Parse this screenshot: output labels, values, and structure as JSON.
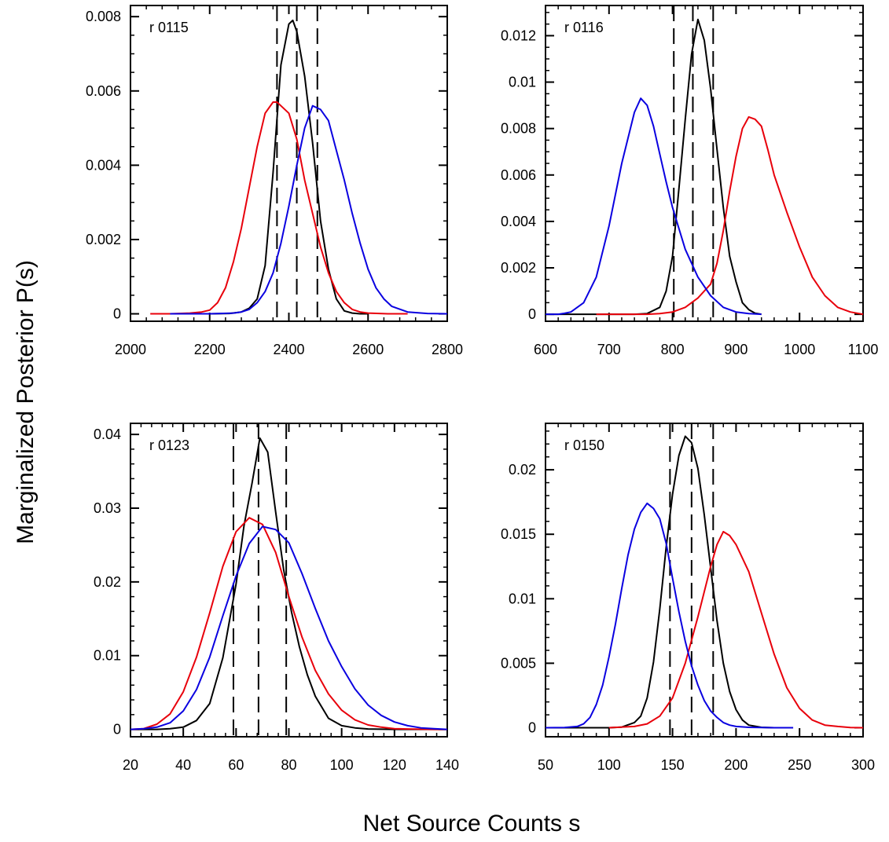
{
  "figure": {
    "ylabel": "Marginalized Posterior P(s)",
    "xlabel": "Net Source Counts s"
  },
  "colors": {
    "black": "#000000",
    "red": "#e8000b",
    "blue": "#0a00e0"
  },
  "chart_data": [
    {
      "type": "line",
      "label": "r 0115",
      "xlim": [
        2000,
        2800
      ],
      "ylim": [
        -0.0002,
        0.0083
      ],
      "xticks": [
        2000,
        2200,
        2400,
        2600,
        2800
      ],
      "xtick_labels": [
        "2000",
        "2200",
        "2400",
        "2600",
        "2800"
      ],
      "x_minor_step": 40,
      "yticks": [
        0,
        0.002,
        0.004,
        0.006,
        0.008
      ],
      "ytick_labels": [
        "0",
        "0.002",
        "0.004",
        "0.006",
        "0.008"
      ],
      "y_minor_step": 0.0005,
      "vlines": [
        2370,
        2420,
        2472
      ],
      "series": [
        {
          "color": "black",
          "x": [
            2150,
            2200,
            2250,
            2280,
            2300,
            2320,
            2340,
            2360,
            2380,
            2400,
            2410,
            2420,
            2440,
            2460,
            2480,
            2500,
            2520,
            2540,
            2560,
            2580,
            2600
          ],
          "y": [
            0,
            0,
            1e-05,
            5e-05,
            0.00015,
            0.0004,
            0.0013,
            0.0038,
            0.0067,
            0.0078,
            0.0079,
            0.0076,
            0.0064,
            0.0046,
            0.0025,
            0.0012,
            0.0004,
            8e-05,
            2e-05,
            0,
            0
          ]
        },
        {
          "color": "red",
          "x": [
            2050,
            2100,
            2150,
            2180,
            2200,
            2220,
            2240,
            2260,
            2280,
            2300,
            2320,
            2340,
            2360,
            2370,
            2380,
            2400,
            2420,
            2440,
            2460,
            2480,
            2500,
            2520,
            2540,
            2560,
            2580,
            2600,
            2650,
            2700
          ],
          "y": [
            0,
            0,
            2e-05,
            5e-05,
            0.0001,
            0.0003,
            0.0007,
            0.0014,
            0.0023,
            0.0034,
            0.0045,
            0.0054,
            0.0057,
            0.0057,
            0.0056,
            0.0054,
            0.0047,
            0.0036,
            0.0027,
            0.0018,
            0.0011,
            0.0006,
            0.0003,
            0.00012,
            5e-05,
            2e-05,
            0,
            0
          ]
        },
        {
          "color": "blue",
          "x": [
            2100,
            2200,
            2260,
            2280,
            2300,
            2320,
            2340,
            2360,
            2380,
            2400,
            2420,
            2440,
            2460,
            2480,
            2500,
            2520,
            2540,
            2560,
            2580,
            2600,
            2620,
            2640,
            2660,
            2700,
            2750,
            2800
          ],
          "y": [
            0,
            0,
            2e-05,
            5e-05,
            0.00012,
            0.0003,
            0.0006,
            0.0011,
            0.0019,
            0.0029,
            0.004,
            0.005,
            0.0056,
            0.0055,
            0.0052,
            0.0044,
            0.0036,
            0.0027,
            0.0019,
            0.0012,
            0.0007,
            0.0004,
            0.0002,
            5e-05,
            1e-05,
            0
          ]
        }
      ]
    },
    {
      "type": "line",
      "label": "r 0116",
      "xlim": [
        600,
        1100
      ],
      "ylim": [
        -0.0003,
        0.0133
      ],
      "xticks": [
        600,
        700,
        800,
        900,
        1000,
        1100
      ],
      "xtick_labels": [
        "600",
        "700",
        "800",
        "900",
        "1000",
        "1100"
      ],
      "x_minor_step": 20,
      "yticks": [
        0,
        0.002,
        0.004,
        0.006,
        0.008,
        0.01,
        0.012
      ],
      "ytick_labels": [
        "0",
        "0.002",
        "0.004",
        "0.006",
        "0.008",
        "0.01",
        "0.012"
      ],
      "y_minor_step": 0.0005,
      "vlines": [
        802,
        832,
        864
      ],
      "series": [
        {
          "color": "black",
          "x": [
            600,
            700,
            740,
            760,
            780,
            790,
            800,
            810,
            820,
            830,
            840,
            850,
            860,
            870,
            880,
            890,
            900,
            910,
            920,
            930,
            940
          ],
          "y": [
            0,
            0,
            0,
            3e-05,
            0.0003,
            0.001,
            0.0025,
            0.0054,
            0.0084,
            0.0112,
            0.0127,
            0.0118,
            0.0097,
            0.0071,
            0.0046,
            0.0025,
            0.0014,
            0.0005,
            0.0002,
            5e-05,
            0
          ]
        },
        {
          "color": "red",
          "x": [
            680,
            760,
            780,
            800,
            820,
            840,
            860,
            870,
            880,
            890,
            900,
            910,
            920,
            930,
            940,
            950,
            960,
            980,
            1000,
            1020,
            1040,
            1060,
            1080,
            1100
          ],
          "y": [
            0,
            0,
            3e-05,
            0.0001,
            0.0003,
            0.0007,
            0.0013,
            0.0022,
            0.0036,
            0.0053,
            0.0068,
            0.008,
            0.0085,
            0.0084,
            0.0081,
            0.0071,
            0.006,
            0.0044,
            0.0029,
            0.0016,
            0.0008,
            0.0003,
            0.0001,
            0
          ]
        },
        {
          "color": "blue",
          "x": [
            600,
            620,
            630,
            640,
            660,
            680,
            700,
            720,
            740,
            750,
            760,
            770,
            780,
            790,
            800,
            820,
            840,
            860,
            880,
            900,
            920,
            940
          ],
          "y": [
            0,
            0,
            4e-05,
            0.0001,
            0.0005,
            0.0016,
            0.0038,
            0.0065,
            0.0087,
            0.0093,
            0.009,
            0.0081,
            0.0069,
            0.0057,
            0.0046,
            0.0028,
            0.0016,
            0.0008,
            0.0003,
            0.0001,
            3e-05,
            0
          ]
        }
      ]
    },
    {
      "type": "line",
      "label": "r 0123",
      "xlim": [
        20,
        140
      ],
      "ylim": [
        -0.001,
        0.0415
      ],
      "xticks": [
        20,
        40,
        60,
        80,
        100,
        120,
        140
      ],
      "xtick_labels": [
        "20",
        "40",
        "60",
        "80",
        "100",
        "120",
        "140"
      ],
      "x_minor_step": 4,
      "yticks": [
        0,
        0.01,
        0.02,
        0.03,
        0.04
      ],
      "ytick_labels": [
        "0",
        "0.01",
        "0.02",
        "0.03",
        "0.04"
      ],
      "y_minor_step": 0.002,
      "vlines": [
        59,
        68.5,
        79
      ],
      "series": [
        {
          "color": "black",
          "x": [
            20,
            30,
            35,
            40,
            45,
            50,
            55,
            60,
            63,
            66,
            69,
            72,
            75,
            78,
            81,
            84,
            87,
            90,
            95,
            100,
            105,
            110,
            120,
            130,
            140
          ],
          "y": [
            0,
            0,
            0.0001,
            0.0003,
            0.0012,
            0.0035,
            0.0097,
            0.0197,
            0.0276,
            0.0333,
            0.0395,
            0.0376,
            0.0295,
            0.0217,
            0.0159,
            0.0112,
            0.0074,
            0.0045,
            0.0015,
            0.0005,
            0.0002,
            5e-05,
            0,
            0,
            0
          ]
        },
        {
          "color": "red",
          "x": [
            20,
            25,
            30,
            35,
            40,
            45,
            50,
            55,
            60,
            65,
            70,
            75,
            80,
            85,
            90,
            95,
            100,
            105,
            110,
            115,
            120,
            125,
            130,
            135,
            140
          ],
          "y": [
            0,
            0.0001,
            0.0007,
            0.0021,
            0.0051,
            0.0098,
            0.0158,
            0.0221,
            0.0268,
            0.0287,
            0.0278,
            0.024,
            0.018,
            0.0125,
            0.008,
            0.0048,
            0.0026,
            0.0013,
            0.0006,
            0.0003,
            0.0001,
            5e-05,
            2e-05,
            0,
            0
          ]
        },
        {
          "color": "blue",
          "x": [
            20,
            25,
            30,
            35,
            40,
            45,
            50,
            55,
            60,
            65,
            70,
            75,
            80,
            85,
            90,
            95,
            100,
            105,
            110,
            115,
            120,
            125,
            130,
            135,
            140
          ],
          "y": [
            0,
            0.0001,
            0.0003,
            0.0009,
            0.0025,
            0.0054,
            0.0098,
            0.0154,
            0.0208,
            0.0252,
            0.0275,
            0.0271,
            0.0253,
            0.0211,
            0.0164,
            0.012,
            0.0085,
            0.0055,
            0.0033,
            0.0019,
            0.001,
            0.0005,
            0.0002,
            0.0001,
            0
          ]
        }
      ]
    },
    {
      "type": "line",
      "label": "r 0150",
      "xlim": [
        50,
        300
      ],
      "ylim": [
        -0.0007,
        0.0236
      ],
      "xticks": [
        50,
        100,
        150,
        200,
        250,
        300
      ],
      "xtick_labels": [
        "50",
        "100",
        "150",
        "200",
        "250",
        "300"
      ],
      "x_minor_step": 10,
      "yticks": [
        0,
        0.005,
        0.01,
        0.015,
        0.02
      ],
      "ytick_labels": [
        "0",
        "0.005",
        "0.01",
        "0.015",
        "0.02"
      ],
      "y_minor_step": 0.001,
      "vlines": [
        148,
        165,
        182
      ],
      "series": [
        {
          "color": "black",
          "x": [
            50,
            100,
            110,
            120,
            125,
            130,
            135,
            140,
            145,
            150,
            155,
            160,
            165,
            170,
            175,
            180,
            185,
            190,
            195,
            200,
            205,
            210,
            220,
            230
          ],
          "y": [
            0,
            0,
            5e-05,
            0.0004,
            0.0009,
            0.0023,
            0.0051,
            0.0092,
            0.014,
            0.0181,
            0.0211,
            0.0226,
            0.0221,
            0.0201,
            0.0165,
            0.0124,
            0.0083,
            0.005,
            0.0028,
            0.0014,
            0.0006,
            0.0002,
            3e-05,
            0
          ]
        },
        {
          "color": "red",
          "x": [
            100,
            120,
            130,
            140,
            150,
            160,
            170,
            180,
            185,
            190,
            195,
            200,
            210,
            220,
            230,
            240,
            250,
            260,
            270,
            280,
            290,
            300
          ],
          "y": [
            0,
            0.0001,
            0.0003,
            0.0009,
            0.0023,
            0.005,
            0.0086,
            0.0125,
            0.0142,
            0.0152,
            0.0149,
            0.0142,
            0.0121,
            0.0089,
            0.0057,
            0.0031,
            0.0015,
            0.0006,
            0.0002,
            0.0001,
            2e-05,
            0
          ]
        },
        {
          "color": "blue",
          "x": [
            50,
            65,
            75,
            80,
            85,
            90,
            95,
            100,
            105,
            110,
            115,
            120,
            125,
            130,
            135,
            140,
            145,
            150,
            155,
            160,
            165,
            170,
            175,
            180,
            185,
            190,
            195,
            200,
            210,
            220,
            230,
            245
          ],
          "y": [
            0,
            2e-05,
            0.0001,
            0.0003,
            0.0008,
            0.0018,
            0.0033,
            0.0055,
            0.008,
            0.0108,
            0.0134,
            0.0154,
            0.0167,
            0.0174,
            0.017,
            0.0162,
            0.0143,
            0.0116,
            0.009,
            0.0067,
            0.0048,
            0.0033,
            0.0021,
            0.0013,
            0.0008,
            0.0004,
            0.0002,
            0.0001,
            3e-05,
            1e-05,
            0,
            0
          ]
        }
      ]
    }
  ]
}
